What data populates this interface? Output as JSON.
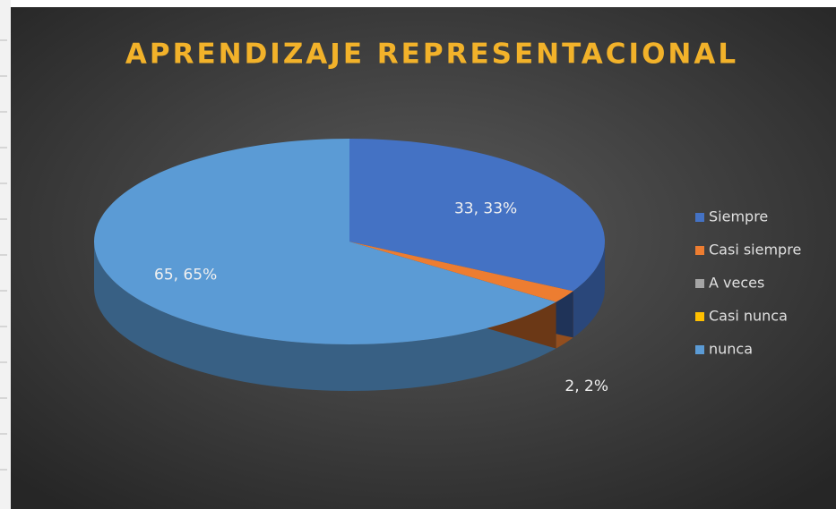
{
  "chart_data": {
    "type": "pie3d",
    "title": "APRENDIZAJE REPRESENTACIONAL",
    "categories": [
      "Siempre",
      "Casi siempre",
      "A veces",
      "Casi nunca",
      "nunca"
    ],
    "values": [
      33,
      2,
      0,
      0,
      65
    ],
    "value_labels": [
      "33, 33%",
      "2, 2%",
      null,
      null,
      "65, 65%"
    ],
    "colors": [
      "#4472c4",
      "#ed7d31",
      "#a5a5a5",
      "#ffc000",
      "#5b9bd5"
    ],
    "legend": "right"
  }
}
